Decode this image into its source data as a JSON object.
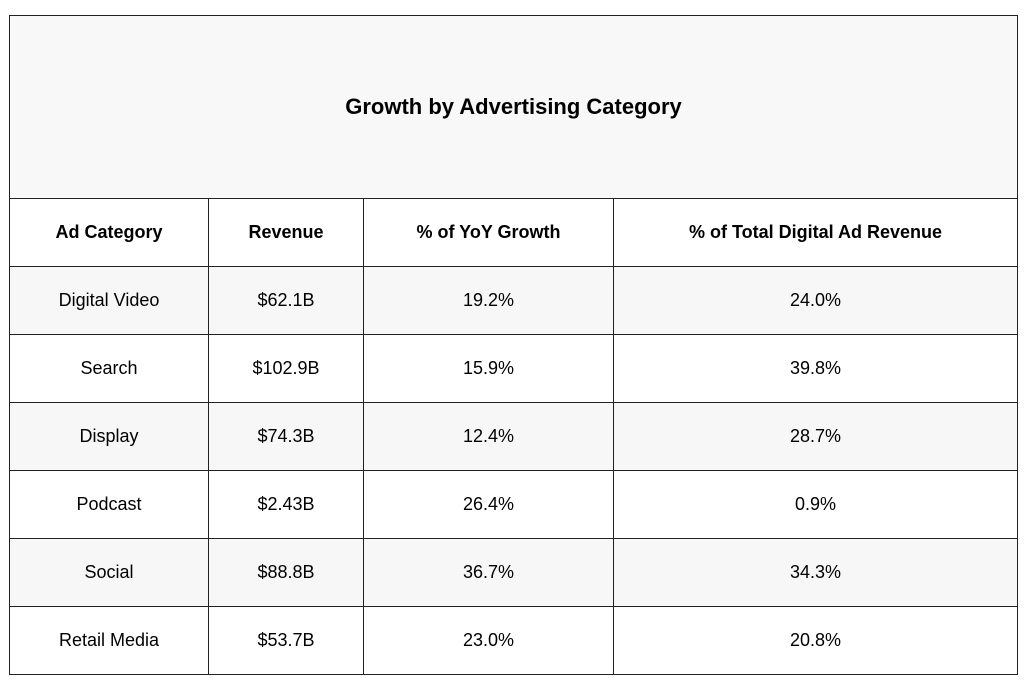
{
  "title": "Growth by Advertising Category",
  "columns": [
    "Ad Category",
    "Revenue",
    "% of YoY Growth",
    "% of Total Digital Ad Revenue"
  ],
  "rows": [
    [
      "Digital Video",
      "$62.1B",
      "19.2%",
      "24.0%"
    ],
    [
      "Search",
      "$102.9B",
      "15.9%",
      "39.8%"
    ],
    [
      "Display",
      "$74.3B",
      "12.4%",
      "28.7%"
    ],
    [
      "Podcast",
      "$2.43B",
      "26.4%",
      "0.9%"
    ],
    [
      "Social",
      "$88.8B",
      "36.7%",
      "34.3%"
    ],
    [
      "Retail Media",
      "$53.7B",
      "23.0%",
      "20.8%"
    ]
  ]
}
